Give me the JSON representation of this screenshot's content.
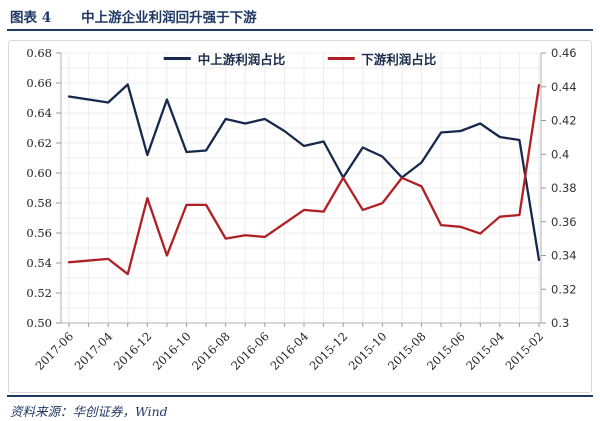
{
  "header": {
    "figure_tag": "图表 4",
    "figure_title": "中上游企业利润回升强于下游"
  },
  "chart_data": {
    "type": "line",
    "title": "中上游企业利润回升强于下游",
    "legend_position": "top-center",
    "grid": true,
    "points_per_label": 2,
    "x_tick_labels": [
      "2017-06",
      "2017-04",
      "2016-12",
      "2016-10",
      "2016-08",
      "2016-06",
      "2016-04",
      "2015-12",
      "2015-10",
      "2015-08",
      "2015-06",
      "2015-04",
      "2015-02"
    ],
    "left_axis": {
      "min": 0.5,
      "max": 0.68,
      "tick_step": 0.02,
      "tick_labels": [
        "0.68",
        "0.66",
        "0.64",
        "0.62",
        "0.60",
        "0.58",
        "0.56",
        "0.54",
        "0.52",
        "0.50"
      ]
    },
    "right_axis": {
      "min": 0.3,
      "max": 0.46,
      "tick_step": 0.02,
      "tick_labels": [
        "0.46",
        "0.44",
        "0.42",
        "0.4",
        "0.38",
        "0.36",
        "0.34",
        "0.32",
        "0.3"
      ]
    },
    "series": [
      {
        "name": "中上游利润占比",
        "axis": "left",
        "color": "#16294d",
        "values": [
          0.651,
          0.649,
          0.647,
          0.659,
          0.612,
          0.649,
          0.614,
          0.615,
          0.636,
          0.633,
          0.636,
          0.628,
          0.618,
          0.621,
          0.597,
          0.617,
          0.611,
          0.597,
          0.607,
          0.627,
          0.628,
          0.633,
          0.624,
          0.622,
          0.542
        ]
      },
      {
        "name": "下游利润占比",
        "axis": "right",
        "color": "#b01f24",
        "values": [
          0.336,
          0.337,
          0.338,
          0.329,
          0.374,
          0.34,
          0.37,
          0.37,
          0.35,
          0.352,
          0.351,
          0.359,
          0.367,
          0.366,
          0.386,
          0.367,
          0.371,
          0.386,
          0.381,
          0.358,
          0.357,
          0.353,
          0.363,
          0.364,
          0.441
        ]
      }
    ]
  },
  "footer": {
    "source": "资料来源：华创证券，Wind"
  }
}
